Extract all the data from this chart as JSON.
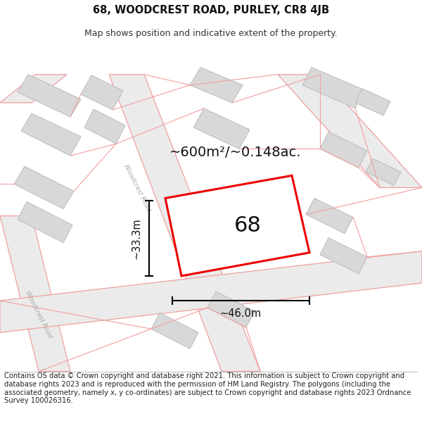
{
  "title": "68, WOODCREST ROAD, PURLEY, CR8 4JB",
  "subtitle": "Map shows position and indicative extent of the property.",
  "footer": "Contains OS data © Crown copyright and database right 2021. This information is subject to Crown copyright and database rights 2023 and is reproduced with the permission of HM Land Registry. The polygons (including the associated geometry, namely x, y co-ordinates) are subject to Crown copyright and database rights 2023 Ordnance Survey 100026316.",
  "area_label": "~600m²/~0.148ac.",
  "width_label": "~46.0m",
  "height_label": "~33.3m",
  "plot_number": "68",
  "bg_color": "#ffffff",
  "map_bg_color": "#ffffff",
  "road_fill_color": "#ebebeb",
  "road_line_color": "#f0a0a0",
  "building_fill_color": "#d8d8d8",
  "building_line_color": "#bbbbbb",
  "highlight_color": "#ee0000",
  "title_fontsize": 10.5,
  "subtitle_fontsize": 9,
  "footer_fontsize": 7.2,
  "annotation_fontsize": 12,
  "area_fontsize": 14,
  "plot_label_fontsize": 22
}
